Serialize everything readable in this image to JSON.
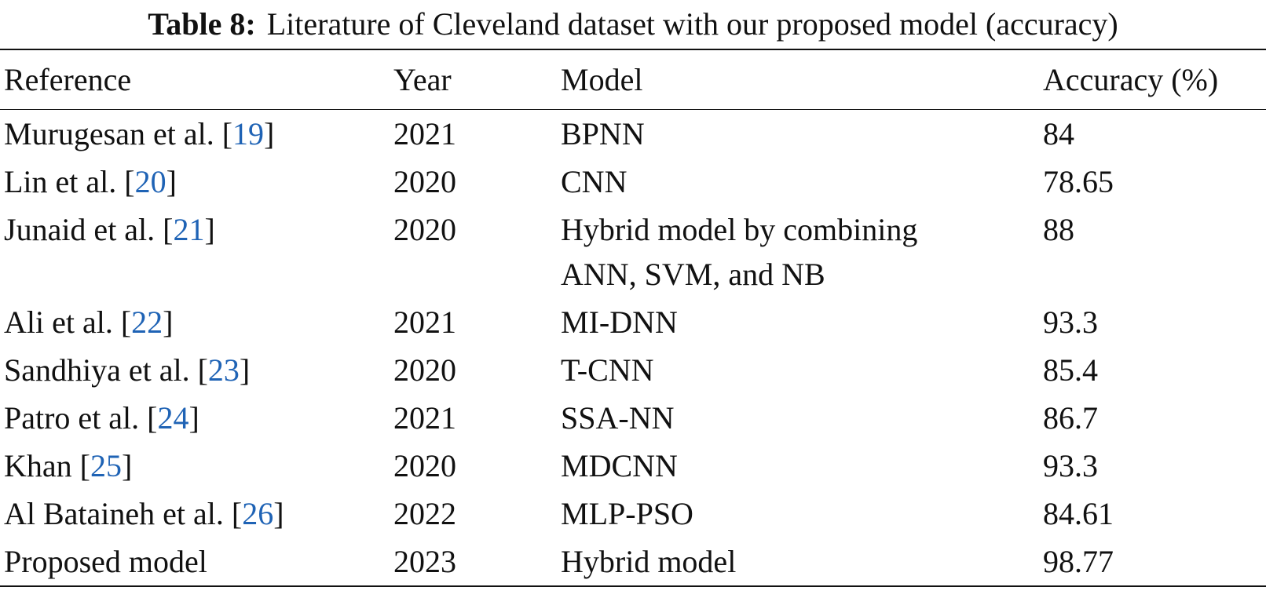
{
  "caption": {
    "label": "Table 8:",
    "text": "Literature of Cleveland dataset with our proposed model (accuracy)"
  },
  "table": {
    "header": [
      "Reference",
      "Year",
      "Model",
      "Accuracy (%)"
    ],
    "rows": [
      {
        "reference": {
          "before": "Murugesan et al. [",
          "cite": "19",
          "after": "]"
        },
        "year": 2021,
        "model": [
          "BPNN"
        ],
        "accuracy": 84
      },
      {
        "reference": {
          "before": "Lin et al. [",
          "cite": "20",
          "after": "]"
        },
        "year": 2020,
        "model": [
          "CNN"
        ],
        "accuracy": 78.65
      },
      {
        "reference": {
          "before": "Junaid et al. [",
          "cite": "21",
          "after": "]"
        },
        "year": 2020,
        "model": [
          "Hybrid model by combining",
          "ANN, SVM, and NB"
        ],
        "accuracy": 88
      },
      {
        "reference": {
          "before": "Ali et al. [",
          "cite": "22",
          "after": "]"
        },
        "year": 2021,
        "model": [
          "MI-DNN"
        ],
        "accuracy": 93.3
      },
      {
        "reference": {
          "before": "Sandhiya et al. [",
          "cite": "23",
          "after": "]"
        },
        "year": 2020,
        "model": [
          "T-CNN"
        ],
        "accuracy": 85.4
      },
      {
        "reference": {
          "before": "Patro et al. [",
          "cite": "24",
          "after": "]"
        },
        "year": 2021,
        "model": [
          "SSA-NN"
        ],
        "accuracy": 86.7
      },
      {
        "reference": {
          "before": "Khan [",
          "cite": "25",
          "after": "]"
        },
        "year": 2020,
        "model": [
          "MDCNN"
        ],
        "accuracy": 93.3
      },
      {
        "reference": {
          "before": "Al Bataineh et al. [",
          "cite": "26",
          "after": "]"
        },
        "year": 2022,
        "model": [
          "MLP-PSO"
        ],
        "accuracy": 84.61
      },
      {
        "reference": {
          "before": "Proposed model"
        },
        "year": 2023,
        "model": [
          "Hybrid model"
        ],
        "accuracy": 98.77
      }
    ]
  }
}
